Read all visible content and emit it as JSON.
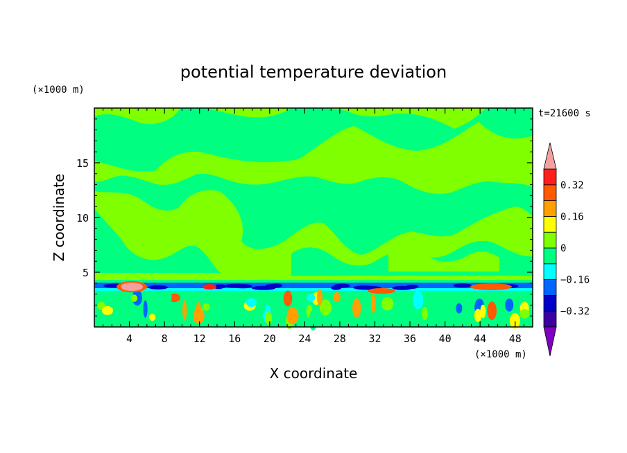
{
  "chart_data": {
    "type": "heatmap",
    "title": "potential temperature deviation",
    "xlabel": "X coordinate",
    "ylabel": "Z coordinate",
    "x_unit": "(×1000 m)",
    "y_unit": "(×1000 m)",
    "time_label": "t=21600 s",
    "xlim": [
      0,
      50
    ],
    "ylim": [
      0,
      20
    ],
    "x_ticks": [
      4,
      8,
      12,
      16,
      20,
      24,
      28,
      32,
      36,
      40,
      44,
      48
    ],
    "y_ticks": [
      5,
      10,
      15
    ],
    "colorbar": {
      "labels": [
        0.32,
        0.16,
        0,
        -0.16,
        -0.32
      ],
      "label_text": [
        "0.32",
        "0.16",
        "0",
        "−0.16",
        "−0.32"
      ],
      "levels": [
        -0.4,
        -0.32,
        -0.24,
        -0.16,
        -0.08,
        0,
        0.08,
        0.16,
        0.24,
        0.32,
        0.4
      ],
      "colors": [
        "#7f00bf",
        "#3c00a0",
        "#0000c8",
        "#0064ff",
        "#00ffff",
        "#00ff80",
        "#80ff00",
        "#ffff00",
        "#ffa000",
        "#ff5a00",
        "#ff1e1e",
        "#f4a0a0"
      ]
    }
  }
}
